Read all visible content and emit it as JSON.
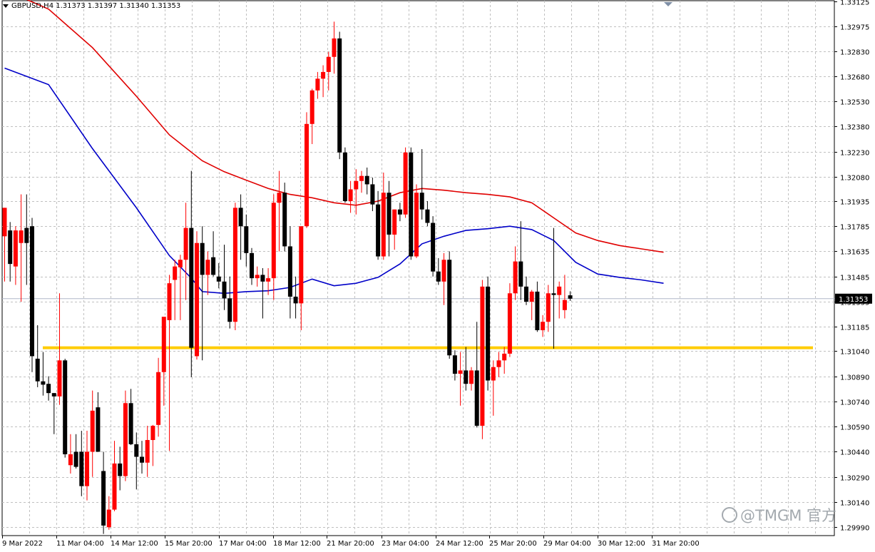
{
  "header": {
    "symbol": "GBPUSD,H4",
    "ohlc": "1.31373 1.31397 1.31340 1.31353"
  },
  "watermark": {
    "text": "@TMGM 官方",
    "icon": "handle-icon"
  },
  "current_price_label": "1.31353",
  "colors": {
    "bull_candle": "#ff0000",
    "bear_candle": "#000000",
    "ma_fast": "#0000c8",
    "ma_slow": "#e00000",
    "support_line": "#ffcc00",
    "grid": "#c0c0c0",
    "current_price_line": "#b0b8c8"
  },
  "chart_data": {
    "type": "candlestick",
    "symbol": "GBPUSD",
    "timeframe": "H4",
    "y_axis": {
      "ylim": [
        1.2994,
        1.3313
      ],
      "ticks": [
        "1.33125",
        "1.32975",
        "1.32830",
        "1.32680",
        "1.32530",
        "1.32380",
        "1.32230",
        "1.32080",
        "1.31935",
        "1.31785",
        "1.31635",
        "1.31485",
        "1.31335",
        "1.31185",
        "1.31040",
        "1.30890",
        "1.30740",
        "1.30590",
        "1.30440",
        "1.30290",
        "1.30140",
        "1.29990"
      ]
    },
    "x_axis": {
      "tick_labels": [
        "9 Mar 2022",
        "11 Mar 04:00",
        "14 Mar 12:00",
        "15 Mar 20:00",
        "17 Mar 04:00",
        "18 Mar 12:00",
        "21 Mar 20:00",
        "23 Mar 04:00",
        "24 Mar 12:00",
        "25 Mar 20:00",
        "29 Mar 04:00",
        "30 Mar 12:00",
        "31 Mar 20:00"
      ]
    },
    "grid": true,
    "current_price": 1.31353,
    "horizontal_levels": [
      {
        "price": 1.3106,
        "color": "#ffcc00",
        "label": ""
      }
    ],
    "candles": [
      {
        "o": 1.31725,
        "h": 1.31895,
        "l": 1.31455,
        "c": 1.31895
      },
      {
        "o": 1.3176,
        "h": 1.3181,
        "l": 1.31455,
        "c": 1.3156
      },
      {
        "o": 1.31545,
        "h": 1.31785,
        "l": 1.31435,
        "c": 1.3176
      },
      {
        "o": 1.31685,
        "h": 1.31975,
        "l": 1.31335,
        "c": 1.3176
      },
      {
        "o": 1.31775,
        "h": 1.31975,
        "l": 1.31435,
        "c": 1.31685
      },
      {
        "o": 1.31785,
        "h": 1.31835,
        "l": 1.30915,
        "c": 1.3101
      },
      {
        "o": 1.30995,
        "h": 1.31195,
        "l": 1.30825,
        "c": 1.3086
      },
      {
        "o": 1.3086,
        "h": 1.31035,
        "l": 1.30775,
        "c": 1.3084
      },
      {
        "o": 1.30845,
        "h": 1.3089,
        "l": 1.30745,
        "c": 1.3079
      },
      {
        "o": 1.3079,
        "h": 1.3079,
        "l": 1.30545,
        "c": 1.3077
      },
      {
        "o": 1.3077,
        "h": 1.31385,
        "l": 1.3072,
        "c": 1.30985
      },
      {
        "o": 1.30985,
        "h": 1.30995,
        "l": 1.30405,
        "c": 1.30425
      },
      {
        "o": 1.3036,
        "h": 1.30545,
        "l": 1.3031,
        "c": 1.30425
      },
      {
        "o": 1.3044,
        "h": 1.30545,
        "l": 1.3034,
        "c": 1.3035
      },
      {
        "o": 1.3044,
        "h": 1.30565,
        "l": 1.30175,
        "c": 1.30235
      },
      {
        "o": 1.30235,
        "h": 1.30565,
        "l": 1.3015,
        "c": 1.3044
      },
      {
        "o": 1.3044,
        "h": 1.30805,
        "l": 1.3029,
        "c": 1.30685
      },
      {
        "o": 1.30705,
        "h": 1.30795,
        "l": 1.3044,
        "c": 1.3044
      },
      {
        "o": 1.30325,
        "h": 1.3044,
        "l": 1.2995,
        "c": 1.3
      },
      {
        "o": 1.2999,
        "h": 1.30175,
        "l": 1.29975,
        "c": 1.30095
      },
      {
        "o": 1.30095,
        "h": 1.30505,
        "l": 1.30085,
        "c": 1.3037
      },
      {
        "o": 1.3037,
        "h": 1.3047,
        "l": 1.3021,
        "c": 1.30295
      },
      {
        "o": 1.30295,
        "h": 1.30805,
        "l": 1.30265,
        "c": 1.3073
      },
      {
        "o": 1.3073,
        "h": 1.30815,
        "l": 1.3048,
        "c": 1.30485
      },
      {
        "o": 1.30485,
        "h": 1.30555,
        "l": 1.30215,
        "c": 1.3041
      },
      {
        "o": 1.3041,
        "h": 1.30505,
        "l": 1.3031,
        "c": 1.30375
      },
      {
        "o": 1.30375,
        "h": 1.30595,
        "l": 1.3029,
        "c": 1.3051
      },
      {
        "o": 1.3051,
        "h": 1.306,
        "l": 1.30355,
        "c": 1.30595
      },
      {
        "o": 1.306,
        "h": 1.31,
        "l": 1.3053,
        "c": 1.30915
      },
      {
        "o": 1.30915,
        "h": 1.31235,
        "l": 1.30715,
        "c": 1.31245
      },
      {
        "o": 1.31225,
        "h": 1.31495,
        "l": 1.30445,
        "c": 1.31445
      },
      {
        "o": 1.31465,
        "h": 1.31585,
        "l": 1.31225,
        "c": 1.31545
      },
      {
        "o": 1.3154,
        "h": 1.31615,
        "l": 1.31225,
        "c": 1.31585
      },
      {
        "o": 1.31585,
        "h": 1.31925,
        "l": 1.31345,
        "c": 1.31775
      },
      {
        "o": 1.31775,
        "h": 1.32115,
        "l": 1.30885,
        "c": 1.3106
      },
      {
        "o": 1.3101,
        "h": 1.31755,
        "l": 1.3099,
        "c": 1.31685
      },
      {
        "o": 1.31685,
        "h": 1.31785,
        "l": 1.30985,
        "c": 1.31495
      },
      {
        "o": 1.31495,
        "h": 1.31635,
        "l": 1.31375,
        "c": 1.31585
      },
      {
        "o": 1.316,
        "h": 1.31755,
        "l": 1.31485,
        "c": 1.31495
      },
      {
        "o": 1.31485,
        "h": 1.31565,
        "l": 1.31415,
        "c": 1.31455
      },
      {
        "o": 1.31455,
        "h": 1.31675,
        "l": 1.31285,
        "c": 1.31355
      },
      {
        "o": 1.31355,
        "h": 1.31485,
        "l": 1.31175,
        "c": 1.31215
      },
      {
        "o": 1.31215,
        "h": 1.31925,
        "l": 1.31165,
        "c": 1.31895
      },
      {
        "o": 1.31895,
        "h": 1.31975,
        "l": 1.31585,
        "c": 1.31785
      },
      {
        "o": 1.31785,
        "h": 1.31855,
        "l": 1.31545,
        "c": 1.31625
      },
      {
        "o": 1.31625,
        "h": 1.31655,
        "l": 1.31435,
        "c": 1.31475
      },
      {
        "o": 1.31475,
        "h": 1.31545,
        "l": 1.31425,
        "c": 1.31495
      },
      {
        "o": 1.31495,
        "h": 1.31535,
        "l": 1.31235,
        "c": 1.31455
      },
      {
        "o": 1.31455,
        "h": 1.31535,
        "l": 1.31375,
        "c": 1.31475
      },
      {
        "o": 1.31475,
        "h": 1.31975,
        "l": 1.31345,
        "c": 1.31925
      },
      {
        "o": 1.31925,
        "h": 1.32115,
        "l": 1.31635,
        "c": 1.31985
      },
      {
        "o": 1.31985,
        "h": 1.32045,
        "l": 1.31635,
        "c": 1.31665
      },
      {
        "o": 1.31665,
        "h": 1.31785,
        "l": 1.31235,
        "c": 1.31365
      },
      {
        "o": 1.31365,
        "h": 1.31485,
        "l": 1.31235,
        "c": 1.31325
      },
      {
        "o": 1.31325,
        "h": 1.31785,
        "l": 1.31165,
        "c": 1.31785
      },
      {
        "o": 1.31785,
        "h": 1.32465,
        "l": 1.31775,
        "c": 1.32395
      },
      {
        "o": 1.32395,
        "h": 1.32605,
        "l": 1.32275,
        "c": 1.32595
      },
      {
        "o": 1.32595,
        "h": 1.32705,
        "l": 1.32545,
        "c": 1.32665
      },
      {
        "o": 1.32665,
        "h": 1.32745,
        "l": 1.32555,
        "c": 1.32705
      },
      {
        "o": 1.32705,
        "h": 1.32825,
        "l": 1.32595,
        "c": 1.32795
      },
      {
        "o": 1.32795,
        "h": 1.33005,
        "l": 1.32695,
        "c": 1.32905
      },
      {
        "o": 1.32905,
        "h": 1.32945,
        "l": 1.32185,
        "c": 1.32225
      },
      {
        "o": 1.32225,
        "h": 1.32255,
        "l": 1.31925,
        "c": 1.31935
      },
      {
        "o": 1.31935,
        "h": 1.32055,
        "l": 1.31865,
        "c": 1.32005
      },
      {
        "o": 1.32005,
        "h": 1.32125,
        "l": 1.31855,
        "c": 1.32055
      },
      {
        "o": 1.32055,
        "h": 1.32115,
        "l": 1.31985,
        "c": 1.32085
      },
      {
        "o": 1.32085,
        "h": 1.32135,
        "l": 1.31975,
        "c": 1.32035
      },
      {
        "o": 1.32035,
        "h": 1.32075,
        "l": 1.31875,
        "c": 1.31915
      },
      {
        "o": 1.31915,
        "h": 1.31995,
        "l": 1.31585,
        "c": 1.31605
      },
      {
        "o": 1.31605,
        "h": 1.32105,
        "l": 1.31585,
        "c": 1.31985
      },
      {
        "o": 1.31985,
        "h": 1.32055,
        "l": 1.31605,
        "c": 1.31735
      },
      {
        "o": 1.31735,
        "h": 1.31885,
        "l": 1.31645,
        "c": 1.31885
      },
      {
        "o": 1.31885,
        "h": 1.31925,
        "l": 1.31815,
        "c": 1.31855
      },
      {
        "o": 1.31855,
        "h": 1.32255,
        "l": 1.31835,
        "c": 1.32225
      },
      {
        "o": 1.32225,
        "h": 1.32255,
        "l": 1.31585,
        "c": 1.31605
      },
      {
        "o": 1.31605,
        "h": 1.32035,
        "l": 1.31595,
        "c": 1.31985
      },
      {
        "o": 1.31985,
        "h": 1.32245,
        "l": 1.31825,
        "c": 1.31885
      },
      {
        "o": 1.31885,
        "h": 1.31935,
        "l": 1.31785,
        "c": 1.31805
      },
      {
        "o": 1.31805,
        "h": 1.31845,
        "l": 1.31485,
        "c": 1.31515
      },
      {
        "o": 1.31515,
        "h": 1.31595,
        "l": 1.31435,
        "c": 1.31455
      },
      {
        "o": 1.31455,
        "h": 1.31625,
        "l": 1.31315,
        "c": 1.31585
      },
      {
        "o": 1.31585,
        "h": 1.31635,
        "l": 1.30995,
        "c": 1.31015
      },
      {
        "o": 1.31015,
        "h": 1.31045,
        "l": 1.30865,
        "c": 1.30905
      },
      {
        "o": 1.30905,
        "h": 1.31035,
        "l": 1.30715,
        "c": 1.30925
      },
      {
        "o": 1.30925,
        "h": 1.31065,
        "l": 1.30805,
        "c": 1.30845
      },
      {
        "o": 1.30845,
        "h": 1.30945,
        "l": 1.30805,
        "c": 1.30925
      },
      {
        "o": 1.30925,
        "h": 1.31215,
        "l": 1.30585,
        "c": 1.30595
      },
      {
        "o": 1.30595,
        "h": 1.31465,
        "l": 1.30515,
        "c": 1.31425
      },
      {
        "o": 1.31425,
        "h": 1.31485,
        "l": 1.30805,
        "c": 1.30865
      },
      {
        "o": 1.30865,
        "h": 1.30985,
        "l": 1.30655,
        "c": 1.30945
      },
      {
        "o": 1.30945,
        "h": 1.31035,
        "l": 1.30885,
        "c": 1.30985
      },
      {
        "o": 1.30985,
        "h": 1.31065,
        "l": 1.30905,
        "c": 1.31025
      },
      {
        "o": 1.31025,
        "h": 1.31445,
        "l": 1.31005,
        "c": 1.31385
      },
      {
        "o": 1.31385,
        "h": 1.31665,
        "l": 1.31345,
        "c": 1.31575
      },
      {
        "o": 1.31575,
        "h": 1.31815,
        "l": 1.31345,
        "c": 1.31425
      },
      {
        "o": 1.31425,
        "h": 1.31485,
        "l": 1.31315,
        "c": 1.31335
      },
      {
        "o": 1.31335,
        "h": 1.31405,
        "l": 1.31225,
        "c": 1.31395
      },
      {
        "o": 1.31395,
        "h": 1.31455,
        "l": 1.31155,
        "c": 1.31165
      },
      {
        "o": 1.31165,
        "h": 1.31255,
        "l": 1.31125,
        "c": 1.31215
      },
      {
        "o": 1.31215,
        "h": 1.31435,
        "l": 1.31155,
        "c": 1.31385
      },
      {
        "o": 1.31385,
        "h": 1.31775,
        "l": 1.31055,
        "c": 1.31375
      },
      {
        "o": 1.31375,
        "h": 1.31455,
        "l": 1.31235,
        "c": 1.31425
      },
      {
        "o": 1.31285,
        "h": 1.31495,
        "l": 1.31235,
        "c": 1.31345
      },
      {
        "o": 1.31373,
        "h": 1.31397,
        "l": 1.3134,
        "c": 1.31353
      }
    ],
    "moving_averages": [
      {
        "color": "#0000c8",
        "values": [
          [
            0,
            1.32728
          ],
          [
            8,
            1.3263
          ],
          [
            16,
            1.32248
          ],
          [
            24,
            1.31895
          ],
          [
            30,
            1.3161
          ],
          [
            34,
            1.31475
          ],
          [
            36,
            1.31395
          ],
          [
            40,
            1.31385
          ],
          [
            44,
            1.31395
          ],
          [
            48,
            1.314
          ],
          [
            52,
            1.3142
          ],
          [
            56,
            1.3147
          ],
          [
            60,
            1.3143
          ],
          [
            64,
            1.31445
          ],
          [
            68,
            1.3148
          ],
          [
            72,
            1.3156
          ],
          [
            76,
            1.3168
          ],
          [
            80,
            1.31725
          ],
          [
            84,
            1.3176
          ],
          [
            88,
            1.3177
          ],
          [
            92,
            1.31785
          ],
          [
            96,
            1.31765
          ],
          [
            100,
            1.317
          ],
          [
            104,
            1.3157
          ],
          [
            108,
            1.315
          ],
          [
            112,
            1.3148
          ],
          [
            116,
            1.31465
          ],
          [
            120,
            1.31445
          ]
        ]
      },
      {
        "color": "#e00000",
        "values": [
          [
            0,
            1.33195
          ],
          [
            8,
            1.3308
          ],
          [
            16,
            1.3285
          ],
          [
            24,
            1.3256
          ],
          [
            30,
            1.3233
          ],
          [
            36,
            1.32175
          ],
          [
            40,
            1.3211
          ],
          [
            44,
            1.3206
          ],
          [
            48,
            1.3201
          ],
          [
            52,
            1.31975
          ],
          [
            56,
            1.31955
          ],
          [
            60,
            1.31925
          ],
          [
            64,
            1.3191
          ],
          [
            68,
            1.31935
          ],
          [
            72,
            1.31985
          ],
          [
            76,
            1.3201
          ],
          [
            80,
            1.32
          ],
          [
            84,
            1.31985
          ],
          [
            88,
            1.31975
          ],
          [
            92,
            1.3196
          ],
          [
            96,
            1.31925
          ],
          [
            100,
            1.31835
          ],
          [
            104,
            1.31745
          ],
          [
            108,
            1.317
          ],
          [
            112,
            1.3167
          ],
          [
            116,
            1.3165
          ],
          [
            120,
            1.3163
          ]
        ]
      }
    ]
  }
}
